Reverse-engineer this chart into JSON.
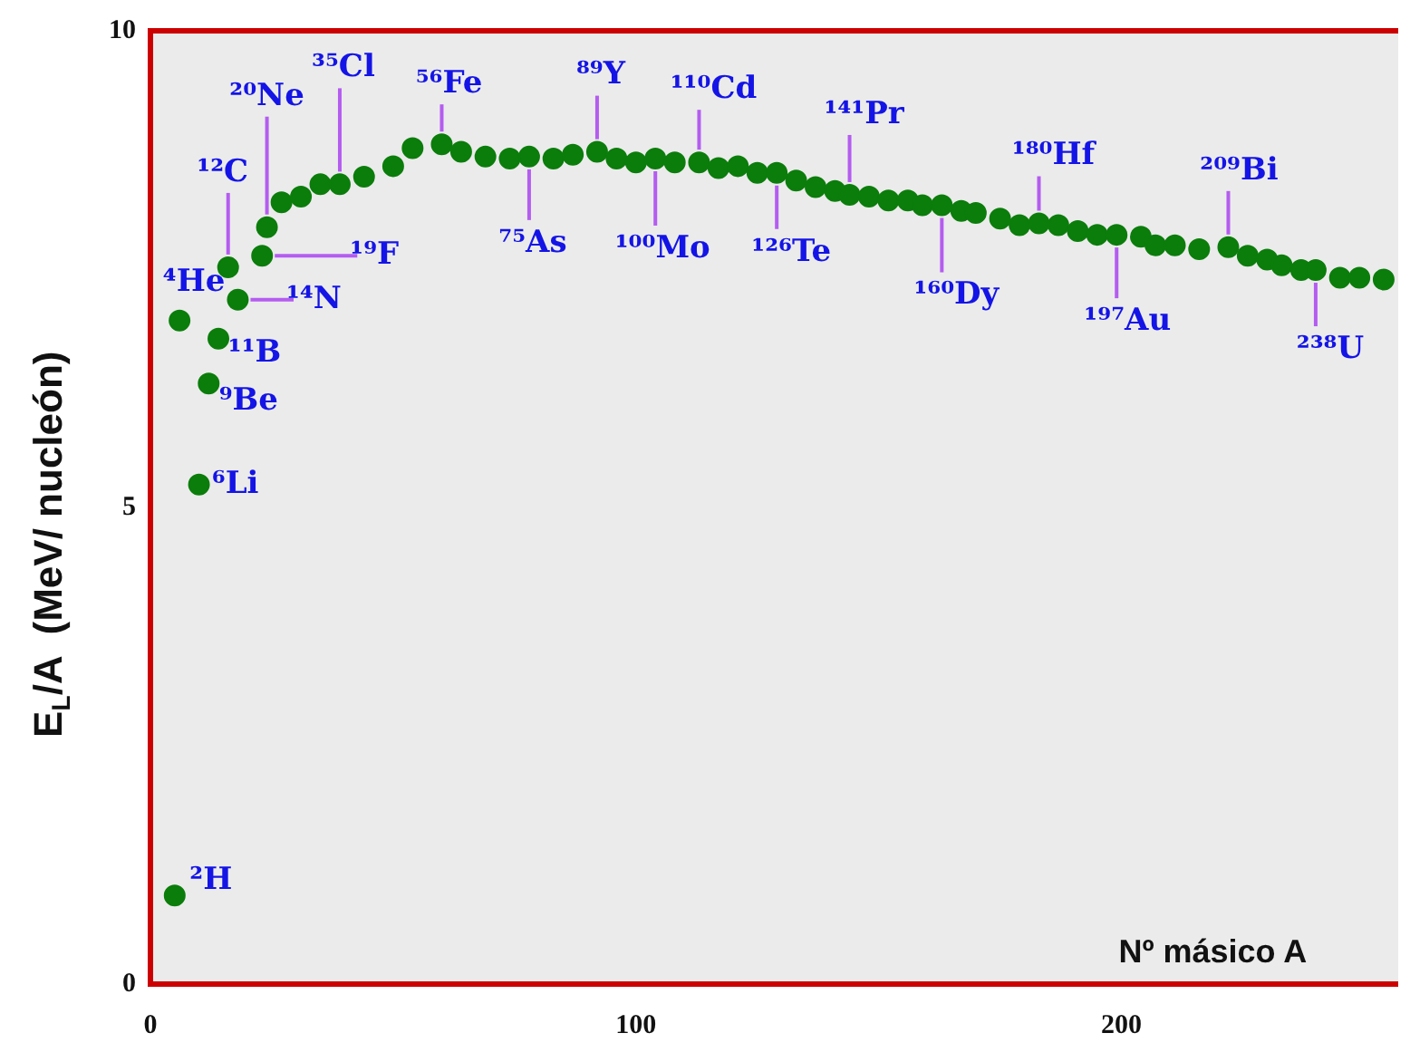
{
  "chart_data": {
    "type": "scatter",
    "xlabel": "Nº másico A",
    "ylabel": "E$_{L}$/A  (MeV/ nucleón)",
    "xlim": [
      0,
      257
    ],
    "xticks": [
      0,
      100,
      200
    ],
    "ylim": [
      0,
      10
    ],
    "yticks": [
      0,
      5,
      10
    ],
    "grid": false,
    "legend": false,
    "marker": "circle",
    "series": [
      {
        "color": "#0b7d0b",
        "x": [
          5,
          6,
          10,
          12,
          14,
          16,
          18,
          23,
          24,
          27,
          31,
          35,
          39,
          44,
          50,
          54,
          60,
          64,
          69,
          74,
          78,
          83,
          87,
          92,
          96,
          100,
          104,
          108,
          113,
          117,
          121,
          125,
          129,
          133,
          137,
          141,
          144,
          148,
          152,
          156,
          159,
          163,
          167,
          170,
          175,
          179,
          183,
          187,
          191,
          195,
          199,
          204,
          207,
          211,
          216,
          222,
          226,
          230,
          233,
          237,
          240,
          245,
          249,
          254
        ],
        "values": [
          0.93,
          6.96,
          5.24,
          6.3,
          6.77,
          7.52,
          7.18,
          7.64,
          7.94,
          8.2,
          8.26,
          8.39,
          8.39,
          8.47,
          8.58,
          8.77,
          8.81,
          8.73,
          8.68,
          8.66,
          8.68,
          8.66,
          8.7,
          8.73,
          8.66,
          8.62,
          8.66,
          8.62,
          8.62,
          8.56,
          8.58,
          8.51,
          8.51,
          8.43,
          8.36,
          8.32,
          8.28,
          8.26,
          8.22,
          8.22,
          8.17,
          8.17,
          8.11,
          8.09,
          8.03,
          7.96,
          7.98,
          7.96,
          7.9,
          7.86,
          7.86,
          7.84,
          7.75,
          7.75,
          7.71,
          7.73,
          7.64,
          7.6,
          7.54,
          7.49,
          7.49,
          7.41,
          7.41,
          7.39
        ]
      }
    ],
    "annotations": [
      {
        "text": "²H",
        "x": 5,
        "y": 0.93
      },
      {
        "text": "⁴He",
        "x": 6,
        "y": 6.96
      },
      {
        "text": "⁶Li",
        "x": 10,
        "y": 5.24
      },
      {
        "text": "⁹Be",
        "x": 12,
        "y": 6.3
      },
      {
        "text": "¹¹B",
        "x": 14,
        "y": 6.77
      },
      {
        "text": "¹²C",
        "x": 16,
        "y": 7.52
      },
      {
        "text": "¹⁴N",
        "x": 18,
        "y": 7.18
      },
      {
        "text": "¹⁹F",
        "x": 23,
        "y": 7.64
      },
      {
        "text": "²⁰Ne",
        "x": 24,
        "y": 7.94
      },
      {
        "text": "³⁵Cl",
        "x": 39,
        "y": 8.39
      },
      {
        "text": "⁵⁶Fe",
        "x": 60,
        "y": 8.81
      },
      {
        "text": "⁷⁵As",
        "x": 78,
        "y": 8.68
      },
      {
        "text": "⁸⁹Y",
        "x": 92,
        "y": 8.73
      },
      {
        "text": "¹⁰⁰Mo",
        "x": 104,
        "y": 8.66
      },
      {
        "text": "¹¹⁰Cd",
        "x": 113,
        "y": 8.62
      },
      {
        "text": "¹²⁶Te",
        "x": 129,
        "y": 8.51
      },
      {
        "text": "¹⁴¹Pr",
        "x": 144,
        "y": 8.28
      },
      {
        "text": "¹⁶⁰Dy",
        "x": 163,
        "y": 8.17
      },
      {
        "text": "¹⁸⁰Hf",
        "x": 183,
        "y": 7.98
      },
      {
        "text": "¹⁹⁷Au",
        "x": 199,
        "y": 7.86
      },
      {
        "text": "²⁰⁹Bi",
        "x": 222,
        "y": 7.73
      },
      {
        "text": "²³⁸U",
        "x": 240,
        "y": 7.49
      }
    ]
  }
}
